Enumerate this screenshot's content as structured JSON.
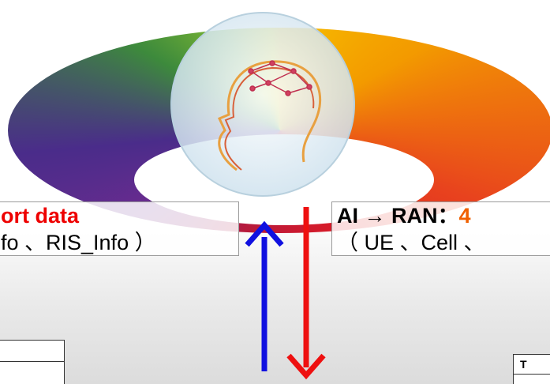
{
  "left_box": {
    "title": "ort data",
    "body": "fo 、RIS_Info ）"
  },
  "right_box": {
    "title": "AI → RAN",
    "separator": "：",
    "title_value": "4",
    "body": "（ UE 、Cell 、"
  },
  "table": {
    "header": "T"
  }
}
